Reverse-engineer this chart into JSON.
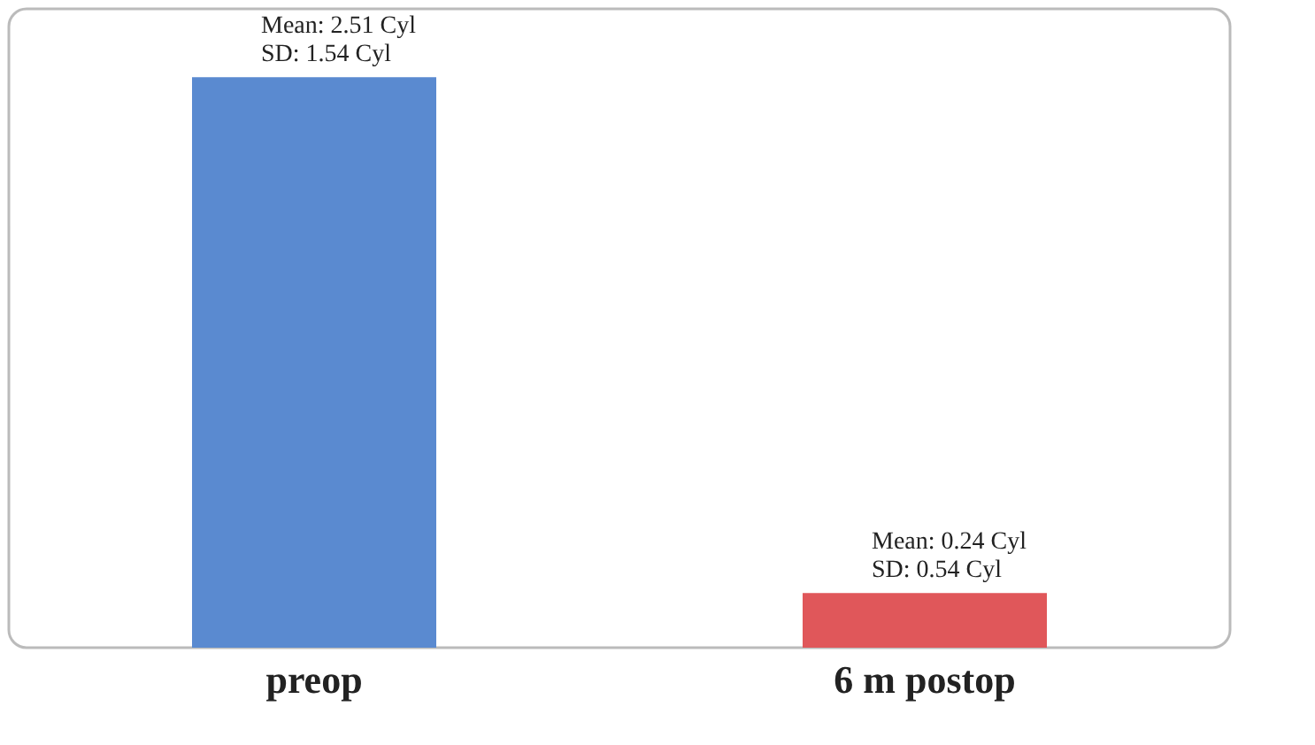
{
  "chart_data": {
    "type": "bar",
    "categories": [
      "preop",
      "6 m postop"
    ],
    "values": [
      2.51,
      0.24
    ],
    "colors": [
      "#5a8ad0",
      "#e0575a"
    ],
    "value_labels": [
      "Mean: 2.51 Cyl\nSD: 1.54 Cyl",
      "Mean: 0.24 Cyl\nSD: 0.54 Cyl"
    ]
  }
}
